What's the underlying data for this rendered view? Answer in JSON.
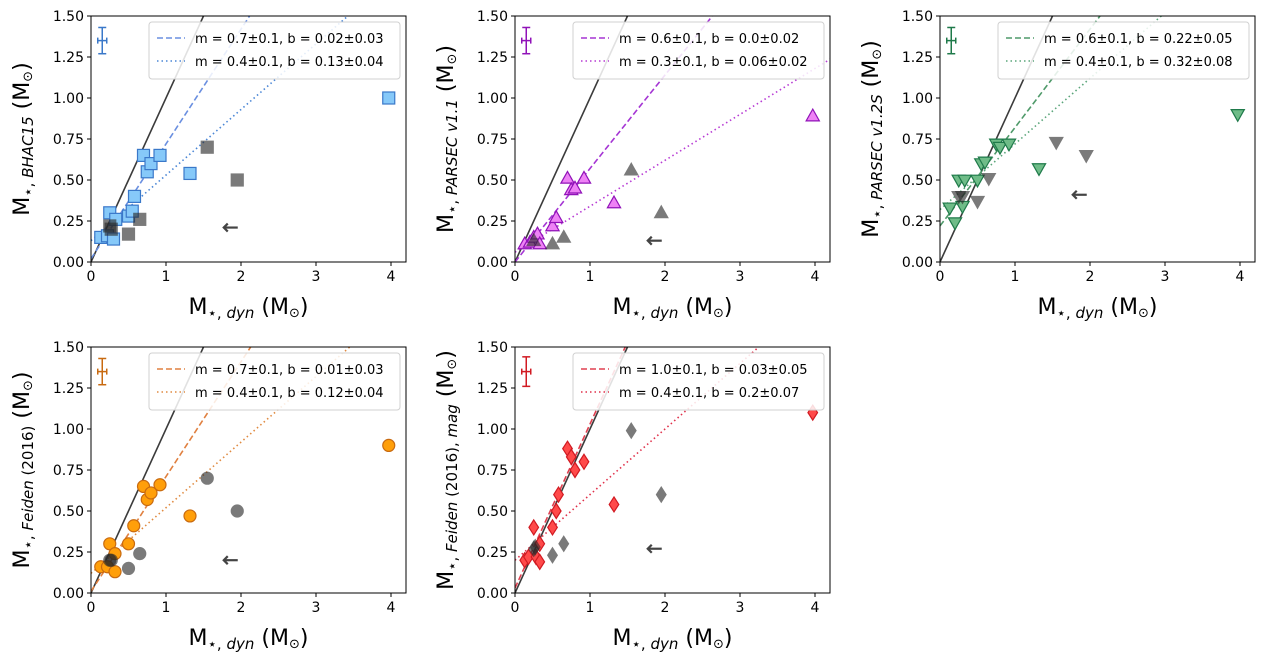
{
  "chart_data": [
    {
      "type": "scatter",
      "ylabel": "M⋆, BHAC15 (M⊙)",
      "ylabel_parts": {
        "pre": "M",
        "star": "⋆, ",
        "sub": "BHAC15",
        "unit": " (M",
        "sun": "⊙",
        "close": ")"
      },
      "xlabel": "M⋆, dyn (M⊙)",
      "xlabel_parts": {
        "pre": "M",
        "star": "⋆, ",
        "sub": "dyn",
        "unit": " (M",
        "sun": "⊙",
        "close": ")"
      },
      "xlim": [
        0,
        4.2
      ],
      "ylim": [
        0,
        1.5
      ],
      "xticks": [
        "0",
        "1",
        "2",
        "3",
        "4"
      ],
      "yticks": [
        "0.00",
        "0.25",
        "0.50",
        "0.75",
        "1.00",
        "1.25",
        "1.50"
      ],
      "color": "#3a78c9",
      "fill": "#86c9f9",
      "marker": "square",
      "fit_lines": [
        {
          "label": "m = 0.7±0.1, b = 0.02±0.03",
          "m": 0.7,
          "b": 0.02,
          "style": "dashed",
          "color": "#6a8fe0"
        },
        {
          "label": "m = 0.4±0.1, b = 0.13±0.04",
          "m": 0.4,
          "b": 0.13,
          "style": "dotted",
          "color": "#4a86d6"
        }
      ],
      "points": [
        [
          0.13,
          0.15
        ],
        [
          0.22,
          0.16
        ],
        [
          0.25,
          0.3
        ],
        [
          0.33,
          0.26
        ],
        [
          0.3,
          0.14
        ],
        [
          0.5,
          0.28
        ],
        [
          0.55,
          0.31
        ],
        [
          0.58,
          0.4
        ],
        [
          0.7,
          0.65
        ],
        [
          0.75,
          0.55
        ],
        [
          0.8,
          0.6
        ],
        [
          0.92,
          0.65
        ],
        [
          1.32,
          0.54
        ],
        [
          3.97,
          1.0
        ]
      ],
      "gray_points": [
        [
          0.25,
          0.22
        ],
        [
          0.27,
          0.2
        ],
        [
          0.5,
          0.17
        ],
        [
          0.65,
          0.26
        ],
        [
          1.55,
          0.7
        ],
        [
          1.95,
          0.5
        ]
      ],
      "upper_limit": [
        1.85,
        0.21
      ],
      "errorbar": {
        "x": 0.15,
        "y": 1.35,
        "xerr": 0.06,
        "yerr": 0.08
      }
    },
    {
      "type": "scatter",
      "ylabel": "M⋆, PARSEC v1.1 (M⊙)",
      "ylabel_parts": {
        "pre": "M",
        "star": "⋆, ",
        "sub": "PARSEC v1.1",
        "unit": " (M",
        "sun": "⊙",
        "close": ")"
      },
      "xlabel": "M⋆, dyn (M⊙)",
      "xlabel_parts": {
        "pre": "M",
        "star": "⋆, ",
        "sub": "dyn",
        "unit": " (M",
        "sun": "⊙",
        "close": ")"
      },
      "xlim": [
        0,
        4.2
      ],
      "ylim": [
        0,
        1.5
      ],
      "xticks": [
        "0",
        "1",
        "2",
        "3",
        "4"
      ],
      "yticks": [
        "0.00",
        "0.25",
        "0.50",
        "0.75",
        "1.00",
        "1.25",
        "1.50"
      ],
      "color": "#9012b8",
      "fill": "#ee82f5",
      "marker": "triangle-up",
      "fit_lines": [
        {
          "label": "m = 0.6±0.1, b = 0.0±0.02",
          "m": 0.57,
          "b": 0.0,
          "style": "dashed",
          "color": "#a535d4"
        },
        {
          "label": "m = 0.3±0.1, b = 0.06±0.02",
          "m": 0.28,
          "b": 0.06,
          "style": "dotted",
          "color": "#b73ad4"
        }
      ],
      "points": [
        [
          0.13,
          0.11
        ],
        [
          0.2,
          0.12
        ],
        [
          0.25,
          0.15
        ],
        [
          0.3,
          0.17
        ],
        [
          0.33,
          0.11
        ],
        [
          0.5,
          0.22
        ],
        [
          0.55,
          0.27
        ],
        [
          0.7,
          0.51
        ],
        [
          0.75,
          0.44
        ],
        [
          0.8,
          0.45
        ],
        [
          0.92,
          0.51
        ],
        [
          1.32,
          0.36
        ],
        [
          3.97,
          0.89
        ]
      ],
      "gray_points": [
        [
          0.25,
          0.13
        ],
        [
          0.5,
          0.11
        ],
        [
          0.65,
          0.15
        ],
        [
          1.55,
          0.56
        ],
        [
          1.95,
          0.3
        ]
      ],
      "upper_limit": [
        1.85,
        0.13
      ],
      "errorbar": {
        "x": 0.15,
        "y": 1.35,
        "xerr": 0.06,
        "yerr": 0.08
      }
    },
    {
      "type": "scatter",
      "ylabel": "M⋆, PARSEC v1.2S (M⊙)",
      "ylabel_parts": {
        "pre": "M",
        "star": "⋆, ",
        "sub": "PARSEC v1.2S",
        "unit": " (M",
        "sun": "⊙",
        "close": ")"
      },
      "xlabel": "M⋆, dyn (M⊙)",
      "xlabel_parts": {
        "pre": "M",
        "star": "⋆, ",
        "sub": "dyn",
        "unit": " (M",
        "sun": "⊙",
        "close": ")"
      },
      "xlim": [
        0,
        4.2
      ],
      "ylim": [
        0,
        1.5
      ],
      "xticks": [
        "0",
        "1",
        "2",
        "3",
        "4"
      ],
      "yticks": [
        "0.00",
        "0.25",
        "0.50",
        "0.75",
        "1.00",
        "1.25",
        "1.50"
      ],
      "color": "#1f7a4a",
      "fill": "#6fbc88",
      "marker": "triangle-down",
      "fit_lines": [
        {
          "label": "m = 0.6±0.1, b = 0.22±0.05",
          "m": 0.6,
          "b": 0.22,
          "style": "dashed",
          "color": "#4f9a6a"
        },
        {
          "label": "m = 0.4±0.1, b = 0.32±0.08",
          "m": 0.4,
          "b": 0.32,
          "style": "dotted",
          "color": "#5aa57a"
        }
      ],
      "points": [
        [
          0.13,
          0.33
        ],
        [
          0.2,
          0.24
        ],
        [
          0.25,
          0.5
        ],
        [
          0.3,
          0.34
        ],
        [
          0.33,
          0.5
        ],
        [
          0.5,
          0.5
        ],
        [
          0.55,
          0.6
        ],
        [
          0.6,
          0.61
        ],
        [
          0.75,
          0.72
        ],
        [
          0.8,
          0.7
        ],
        [
          0.92,
          0.72
        ],
        [
          1.32,
          0.57
        ],
        [
          3.97,
          0.9
        ]
      ],
      "gray_points": [
        [
          0.25,
          0.4
        ],
        [
          0.3,
          0.4
        ],
        [
          0.5,
          0.37
        ],
        [
          0.65,
          0.51
        ],
        [
          1.55,
          0.73
        ],
        [
          1.95,
          0.65
        ]
      ],
      "upper_limit": [
        1.85,
        0.41
      ],
      "errorbar": {
        "x": 0.15,
        "y": 1.35,
        "xerr": 0.06,
        "yerr": 0.08
      }
    },
    {
      "type": "scatter",
      "ylabel": "M⋆, Feiden (2016) (M⊙)",
      "ylabel_parts": {
        "pre": "M",
        "star": "⋆, ",
        "sub": "Feiden",
        "sub2": " (2016)",
        "unit": " (M",
        "sun": "⊙",
        "close": ")"
      },
      "xlabel": "M⋆, dyn (M⊙)",
      "xlabel_parts": {
        "pre": "M",
        "star": "⋆, ",
        "sub": "dyn",
        "unit": " (M",
        "sun": "⊙",
        "close": ")"
      },
      "xlim": [
        0,
        4.2
      ],
      "ylim": [
        0,
        1.5
      ],
      "xticks": [
        "0",
        "1",
        "2",
        "3",
        "4"
      ],
      "yticks": [
        "0.00",
        "0.25",
        "0.50",
        "0.75",
        "1.00",
        "1.25",
        "1.50"
      ],
      "color": "#c86a10",
      "fill": "#ff9f0a",
      "marker": "circle",
      "fit_lines": [
        {
          "label": "m = 0.7±0.1, b = 0.01±0.03",
          "m": 0.7,
          "b": 0.01,
          "style": "dashed",
          "color": "#e08040"
        },
        {
          "label": "m = 0.4±0.1, b = 0.12±0.04",
          "m": 0.4,
          "b": 0.12,
          "style": "dotted",
          "color": "#e08a40"
        }
      ],
      "points": [
        [
          0.13,
          0.16
        ],
        [
          0.22,
          0.16
        ],
        [
          0.25,
          0.3
        ],
        [
          0.32,
          0.24
        ],
        [
          0.32,
          0.13
        ],
        [
          0.5,
          0.3
        ],
        [
          0.57,
          0.41
        ],
        [
          0.7,
          0.65
        ],
        [
          0.75,
          0.57
        ],
        [
          0.8,
          0.61
        ],
        [
          0.92,
          0.66
        ],
        [
          1.32,
          0.47
        ],
        [
          3.97,
          0.9
        ]
      ],
      "gray_points": [
        [
          0.25,
          0.2
        ],
        [
          0.27,
          0.2
        ],
        [
          0.5,
          0.15
        ],
        [
          0.65,
          0.24
        ],
        [
          1.55,
          0.7
        ],
        [
          1.95,
          0.5
        ]
      ],
      "upper_limit": [
        1.85,
        0.2
      ],
      "errorbar": {
        "x": 0.15,
        "y": 1.35,
        "xerr": 0.06,
        "yerr": 0.08
      }
    },
    {
      "type": "scatter",
      "ylabel": "M⋆, Feiden (2016), mag (M⊙)",
      "ylabel_parts": {
        "pre": "M",
        "star": "⋆, ",
        "sub": "Feiden",
        "sub2": " (2016), ",
        "sub3": "mag",
        "unit": " (M",
        "sun": "⊙",
        "close": ")"
      },
      "xlabel": "M⋆, dyn (M⊙)",
      "xlabel_parts": {
        "pre": "M",
        "star": "⋆, ",
        "sub": "dyn",
        "unit": " (M",
        "sun": "⊙",
        "close": ")"
      },
      "xlim": [
        0,
        4.2
      ],
      "ylim": [
        0,
        1.5
      ],
      "xticks": [
        "0",
        "1",
        "2",
        "3",
        "4"
      ],
      "yticks": [
        "0.00",
        "0.25",
        "0.50",
        "0.75",
        "1.00",
        "1.25",
        "1.50"
      ],
      "color": "#d11a22",
      "fill": "#ff4a4a",
      "marker": "diamond",
      "fit_lines": [
        {
          "label": "m = 1.0±0.1, b = 0.03±0.05",
          "m": 1.0,
          "b": 0.03,
          "style": "dashed",
          "color": "#e04050"
        },
        {
          "label": "m = 0.4±0.1, b = 0.2±0.07",
          "m": 0.4,
          "b": 0.2,
          "style": "dotted",
          "color": "#e0304a"
        }
      ],
      "points": [
        [
          0.13,
          0.2
        ],
        [
          0.18,
          0.22
        ],
        [
          0.25,
          0.4
        ],
        [
          0.28,
          0.22
        ],
        [
          0.33,
          0.19
        ],
        [
          0.33,
          0.3
        ],
        [
          0.5,
          0.4
        ],
        [
          0.55,
          0.5
        ],
        [
          0.58,
          0.6
        ],
        [
          0.7,
          0.88
        ],
        [
          0.75,
          0.83
        ],
        [
          0.8,
          0.75
        ],
        [
          0.92,
          0.8
        ],
        [
          1.32,
          0.54
        ],
        [
          3.97,
          1.1
        ]
      ],
      "gray_points": [
        [
          0.25,
          0.27
        ],
        [
          0.27,
          0.28
        ],
        [
          0.5,
          0.23
        ],
        [
          0.65,
          0.3
        ],
        [
          1.55,
          0.99
        ],
        [
          1.95,
          0.6
        ]
      ],
      "upper_limit": [
        1.85,
        0.27
      ],
      "errorbar": {
        "x": 0.15,
        "y": 1.35,
        "xerr": 0.06,
        "yerr": 0.09
      }
    }
  ]
}
